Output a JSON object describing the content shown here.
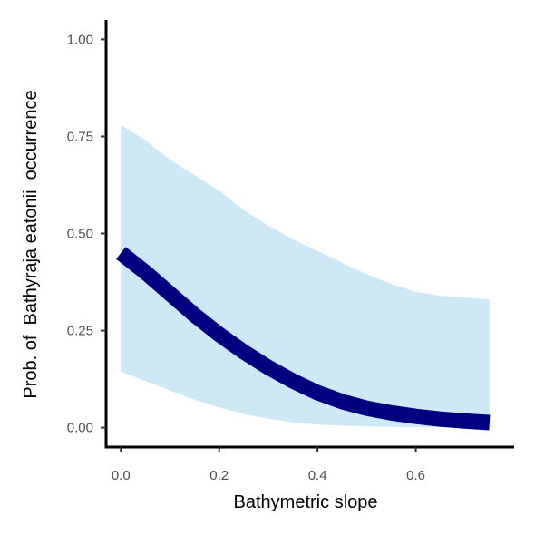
{
  "chart_data": {
    "type": "area",
    "xlabel": "Bathymetric slope",
    "ylabel": "Prob. of  Bathyraja eatonii  occurrence",
    "xlim": [
      -0.03,
      0.8
    ],
    "ylim": [
      -0.05,
      1.05
    ],
    "xticks": [
      0.0,
      0.2,
      0.4,
      0.6
    ],
    "xtick_labels": [
      "0.0",
      "0.2",
      "0.4",
      "0.6"
    ],
    "yticks": [
      0.0,
      0.25,
      0.5,
      0.75,
      1.0
    ],
    "ytick_labels": [
      "0.00",
      "0.25",
      "0.50",
      "0.75",
      "1.00"
    ],
    "grid": false,
    "legend": "none",
    "series": [
      {
        "x": [
          0.0,
          0.05,
          0.1,
          0.15,
          0.2,
          0.25,
          0.3,
          0.35,
          0.4,
          0.45,
          0.5,
          0.55,
          0.6,
          0.65,
          0.7,
          0.75
        ],
        "fit": [
          0.45,
          0.4,
          0.345,
          0.29,
          0.24,
          0.195,
          0.155,
          0.12,
          0.09,
          0.067,
          0.05,
          0.038,
          0.029,
          0.022,
          0.017,
          0.013
        ],
        "lower": [
          0.145,
          0.12,
          0.095,
          0.072,
          0.052,
          0.035,
          0.023,
          0.014,
          0.008,
          0.005,
          0.003,
          0.002,
          0.0013,
          0.0008,
          0.0005,
          0.0003
        ],
        "upper": [
          0.78,
          0.74,
          0.69,
          0.65,
          0.61,
          0.56,
          0.52,
          0.485,
          0.455,
          0.425,
          0.395,
          0.37,
          0.35,
          0.34,
          0.335,
          0.33
        ]
      }
    ],
    "line_color": "#000080",
    "ribbon_color": "#cde9f6"
  }
}
